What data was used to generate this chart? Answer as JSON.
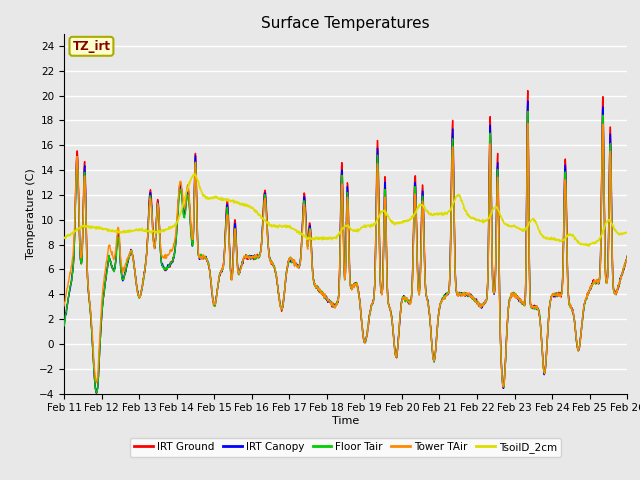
{
  "title": "Surface Temperatures",
  "xlabel": "Time",
  "ylabel": "Temperature (C)",
  "ylim": [
    -4,
    25
  ],
  "yticks": [
    -4,
    -2,
    0,
    2,
    4,
    6,
    8,
    10,
    12,
    14,
    16,
    18,
    20,
    22,
    24
  ],
  "xtick_labels": [
    "Feb 11",
    "Feb 12",
    "Feb 13",
    "Feb 14",
    "Feb 15",
    "Feb 16",
    "Feb 17",
    "Feb 18",
    "Feb 19",
    "Feb 20",
    "Feb 21",
    "Feb 22",
    "Feb 23",
    "Feb 24",
    "Feb 25",
    "Feb 26"
  ],
  "series": {
    "IRT Ground": {
      "color": "#ff0000",
      "lw": 1.0
    },
    "IRT Canopy": {
      "color": "#0000ff",
      "lw": 1.0
    },
    "Floor Tair": {
      "color": "#00cc00",
      "lw": 1.0
    },
    "Tower TAir": {
      "color": "#ff8800",
      "lw": 1.0
    },
    "TsoilD_2cm": {
      "color": "#dddd00",
      "lw": 1.2
    }
  },
  "legend_order": [
    "IRT Ground",
    "IRT Canopy",
    "Floor Tair",
    "Tower TAir",
    "TsoilD_2cm"
  ],
  "annotation_text": "TZ_irt",
  "annotation_facecolor": "#ffffcc",
  "annotation_edgecolor": "#aaaa00",
  "annotation_textcolor": "#880000",
  "plot_bg_color": "#e8e8e8",
  "grid_color": "#ffffff",
  "title_fontsize": 11,
  "axis_fontsize": 8,
  "tick_fontsize": 7.5,
  "n_points": 1440
}
